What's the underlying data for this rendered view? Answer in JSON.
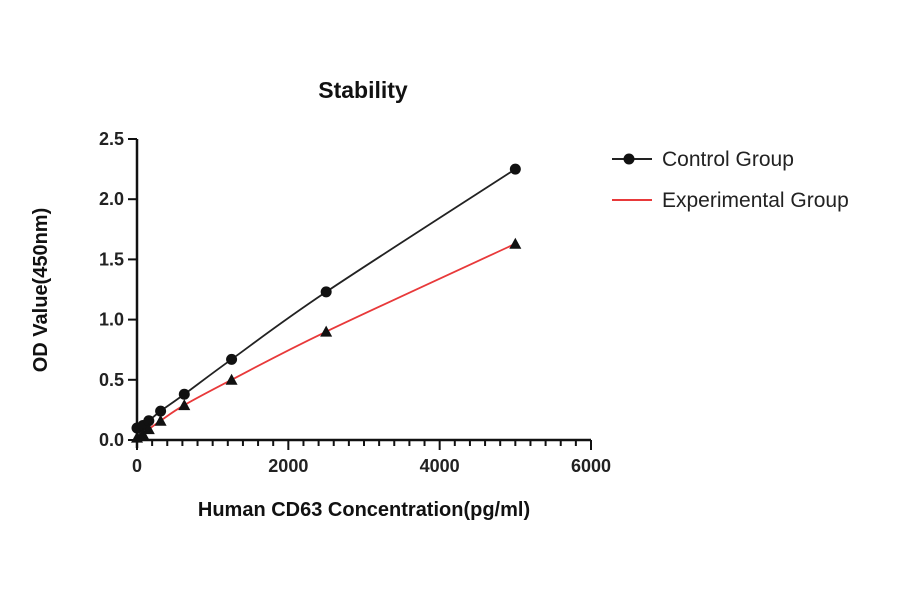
{
  "chart_data": {
    "type": "scatter",
    "title": "Stability",
    "xlabel": "Human CD63 Concentration(pg/ml)",
    "ylabel": "OD Value(450nm)",
    "xlim": [
      0,
      6000
    ],
    "ylim": [
      0,
      2.5
    ],
    "xticks": [
      "0",
      "2000",
      "4000",
      "6000"
    ],
    "yticks": [
      "0.0",
      "0.5",
      "1.0",
      "1.5",
      "2.0",
      "2.5"
    ],
    "grid": false,
    "legend_position": "right",
    "x": [
      0,
      78,
      156,
      312,
      625,
      1250,
      2500,
      5000
    ],
    "series": [
      {
        "name": "Control Group",
        "color": "#111111",
        "marker": "circle",
        "line_color": "#222222",
        "values": [
          0.1,
          0.12,
          0.16,
          0.24,
          0.38,
          0.67,
          1.23,
          2.25
        ]
      },
      {
        "name": "Experimental Group",
        "color": "#111111",
        "marker": "triangle",
        "line_color": "#e8393a",
        "values": [
          0.02,
          0.05,
          0.09,
          0.16,
          0.29,
          0.5,
          0.9,
          1.63
        ]
      }
    ]
  }
}
